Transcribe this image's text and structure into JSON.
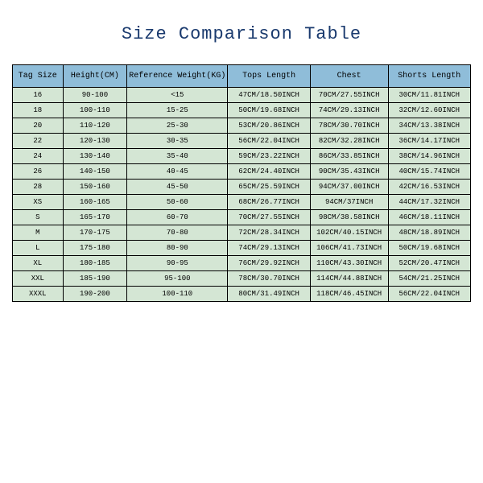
{
  "title": "Size Comparison Table",
  "table": {
    "type": "table",
    "header_bg": "#8fbdd9",
    "row_bg": "#d4e6d4",
    "border_color": "#000000",
    "title_color": "#1a3a6e",
    "columns": [
      "Tag Size",
      "Height(CM)",
      "Reference Weight(KG)",
      "Tops Length",
      "Chest",
      "Shorts Length"
    ],
    "rows": [
      [
        "16",
        "90-100",
        "<15",
        "47CM/18.50INCH",
        "70CM/27.55INCH",
        "30CM/11.81INCH"
      ],
      [
        "18",
        "100-110",
        "15-25",
        "50CM/19.68INCH",
        "74CM/29.13INCH",
        "32CM/12.60INCH"
      ],
      [
        "20",
        "110-120",
        "25-30",
        "53CM/20.86INCH",
        "78CM/30.70INCH",
        "34CM/13.38INCH"
      ],
      [
        "22",
        "120-130",
        "30-35",
        "56CM/22.04INCH",
        "82CM/32.28INCH",
        "36CM/14.17INCH"
      ],
      [
        "24",
        "130-140",
        "35-40",
        "59CM/23.22INCH",
        "86CM/33.85INCH",
        "38CM/14.96INCH"
      ],
      [
        "26",
        "140-150",
        "40-45",
        "62CM/24.40INCH",
        "90CM/35.43INCH",
        "40CM/15.74INCH"
      ],
      [
        "28",
        "150-160",
        "45-50",
        "65CM/25.59INCH",
        "94CM/37.00INCH",
        "42CM/16.53INCH"
      ],
      [
        "XS",
        "160-165",
        "50-60",
        "68CM/26.77INCH",
        "94CM/37INCH",
        "44CM/17.32INCH"
      ],
      [
        "S",
        "165-170",
        "60-70",
        "70CM/27.55INCH",
        "98CM/38.58INCH",
        "46CM/18.11INCH"
      ],
      [
        "M",
        "170-175",
        "70-80",
        "72CM/28.34INCH",
        "102CM/40.15INCH",
        "48CM/18.89INCH"
      ],
      [
        "L",
        "175-180",
        "80-90",
        "74CM/29.13INCH",
        "106CM/41.73INCH",
        "50CM/19.68INCH"
      ],
      [
        "XL",
        "180-185",
        "90-95",
        "76CM/29.92INCH",
        "110CM/43.30INCH",
        "52CM/20.47INCH"
      ],
      [
        "XXL",
        "185-190",
        "95-100",
        "78CM/30.70INCH",
        "114CM/44.88INCH",
        "54CM/21.25INCH"
      ],
      [
        "XXXL",
        "190-200",
        "100-110",
        "80CM/31.49INCH",
        "118CM/46.45INCH",
        "56CM/22.04INCH"
      ]
    ]
  }
}
